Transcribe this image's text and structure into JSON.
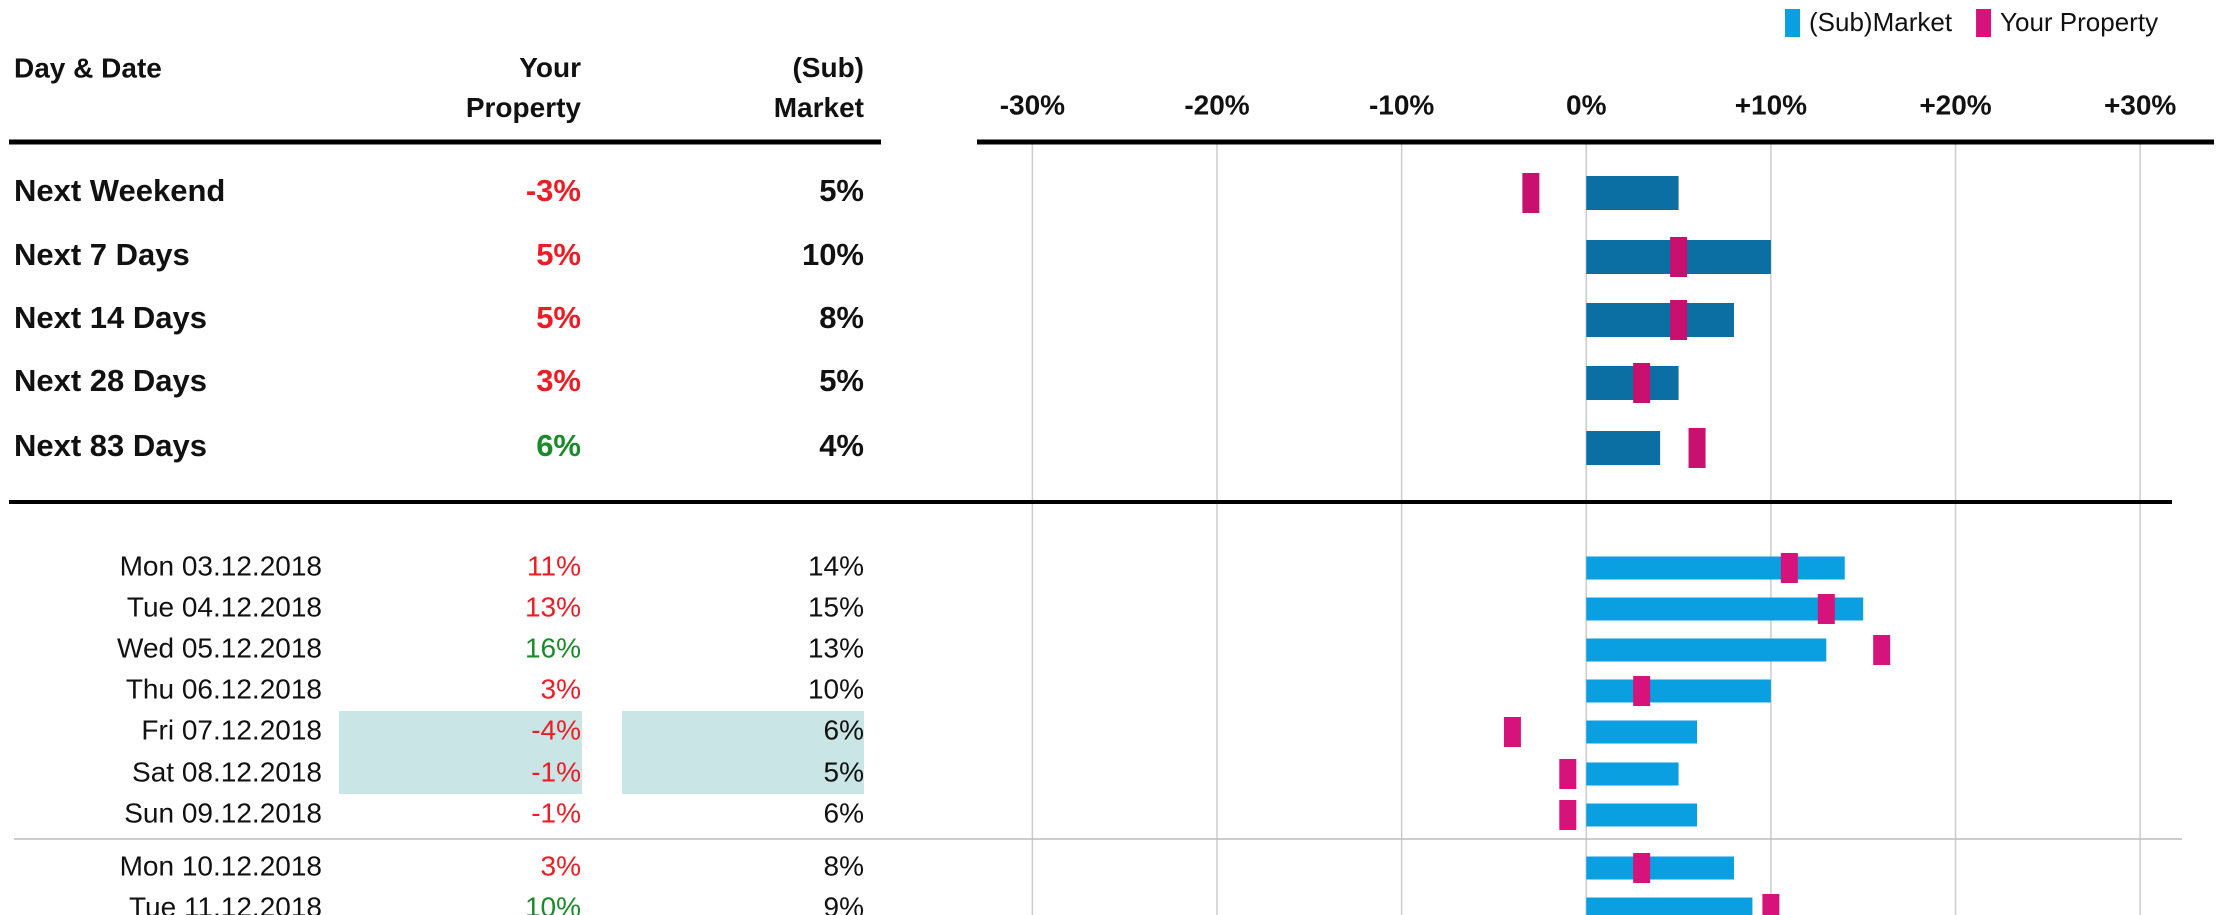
{
  "chart_data": [
    {
      "type": "bar",
      "columns": [
        "Day & Date",
        "Your Property",
        "(Sub) Market"
      ],
      "xlim": [
        -33,
        34
      ],
      "xticks": [
        {
          "value": -30,
          "label": "-30%"
        },
        {
          "value": -20,
          "label": "-20%"
        },
        {
          "value": -10,
          "label": "-10%"
        },
        {
          "value": 0,
          "label": "0%"
        },
        {
          "value": 10,
          "label": "+10%"
        },
        {
          "value": 20,
          "label": "+20%"
        },
        {
          "value": 30,
          "label": "+30%"
        }
      ],
      "grid": true,
      "categories": [
        "Next Weekend",
        "Next 7 Days",
        "Next 14 Days",
        "Next 28 Days",
        "Next 83 Days"
      ],
      "series": [
        {
          "color": "#c8106e",
          "values": [
            -3,
            5,
            5,
            3,
            6
          ],
          "value_labels": [
            "-3%",
            "5%",
            "5%",
            "3%",
            "6%"
          ]
        },
        {
          "color": "#0b6fa4",
          "values": [
            5,
            10,
            8,
            5,
            4
          ],
          "value_labels": [
            "5%",
            "10%",
            "8%",
            "5%",
            "4%"
          ]
        }
      ]
    },
    {
      "type": "bar",
      "xlim": [
        -33,
        34
      ],
      "legend": "top-right",
      "categories": [
        "Mon 03.12.2018",
        "Tue 04.12.2018",
        "Wed 05.12.2018",
        "Thu 06.12.2018",
        "Fri 07.12.2018",
        "Sat 08.12.2018",
        "Sun 09.12.2018",
        "Mon 10.12.2018",
        "Tue 11.12.2018"
      ],
      "series": [
        {
          "name": "Your Property",
          "color": "#d6137a",
          "values": [
            11,
            13,
            16,
            3,
            -4,
            -1,
            -1,
            3,
            10
          ],
          "value_labels": [
            "11%",
            "13%",
            "16%",
            "3%",
            "-4%",
            "-1%",
            "-1%",
            "3%",
            "10%"
          ]
        },
        {
          "name": "(Sub)Market",
          "color": "#0a9fe0",
          "values": [
            14,
            15,
            13,
            10,
            6,
            5,
            6,
            8,
            9
          ],
          "value_labels": [
            "14%",
            "15%",
            "13%",
            "10%",
            "6%",
            "5%",
            "6%",
            "8%",
            "9%"
          ]
        }
      ]
    }
  ]
}
